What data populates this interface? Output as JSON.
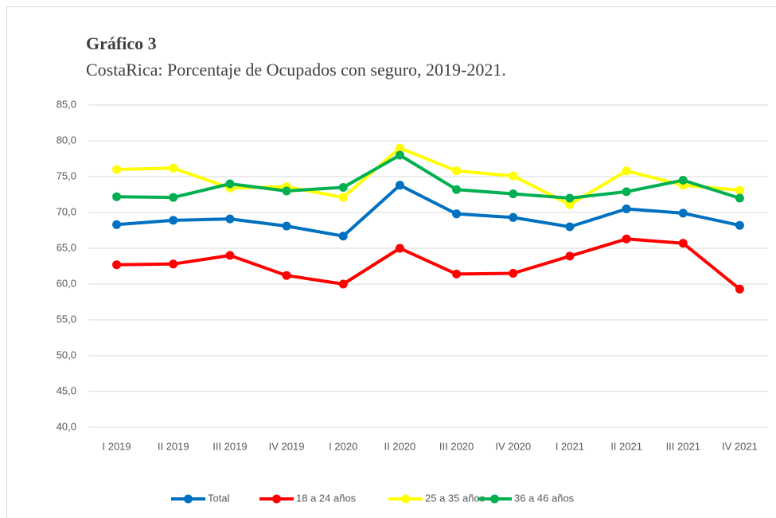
{
  "chart_data": {
    "type": "line",
    "title": "Gráfico 3",
    "subtitle": "CostaRica: Porcentaje de Ocupados con seguro, 2019-2021.",
    "categories": [
      "I 2019",
      "II 2019",
      "III 2019",
      "IV 2019",
      "I 2020",
      "II 2020",
      "III 2020",
      "IV 2020",
      "I 2021",
      "II 2021",
      "III 2021",
      "IV 2021"
    ],
    "series": [
      {
        "name": "Total",
        "color": "#0070c0",
        "values": [
          68.3,
          68.9,
          69.1,
          68.1,
          66.7,
          73.8,
          69.8,
          69.3,
          68.0,
          70.5,
          69.9,
          68.2
        ]
      },
      {
        "name": "18 a 24 años",
        "color": "#ff0000",
        "values": [
          62.7,
          62.8,
          64.0,
          61.2,
          60.0,
          65.0,
          61.4,
          61.5,
          63.9,
          66.3,
          65.7,
          59.3
        ]
      },
      {
        "name": "25 a 35 años",
        "color": "#ffff00",
        "values": [
          76.0,
          76.2,
          73.4,
          73.6,
          72.1,
          79.0,
          75.8,
          75.1,
          71.1,
          75.8,
          73.8,
          73.1
        ]
      },
      {
        "name": "36 a 46 años",
        "color": "#00b050",
        "values": [
          72.2,
          72.1,
          74.0,
          73.0,
          73.5,
          78.0,
          73.2,
          72.6,
          72.0,
          72.9,
          74.5,
          72.0
        ]
      }
    ],
    "ylim": [
      40,
      85
    ],
    "yticks": [
      {
        "value": 40,
        "label": "40,0"
      },
      {
        "value": 45,
        "label": "45,0"
      },
      {
        "value": 50,
        "label": "50,0"
      },
      {
        "value": 55,
        "label": "55,0"
      },
      {
        "value": 60,
        "label": "60,0"
      },
      {
        "value": 65,
        "label": "65,0"
      },
      {
        "value": 70,
        "label": "70,0"
      },
      {
        "value": 75,
        "label": "75,0"
      },
      {
        "value": 80,
        "label": "80,0"
      },
      {
        "value": 85,
        "label": "85,0"
      }
    ],
    "grid": true,
    "legend": "bottom"
  }
}
